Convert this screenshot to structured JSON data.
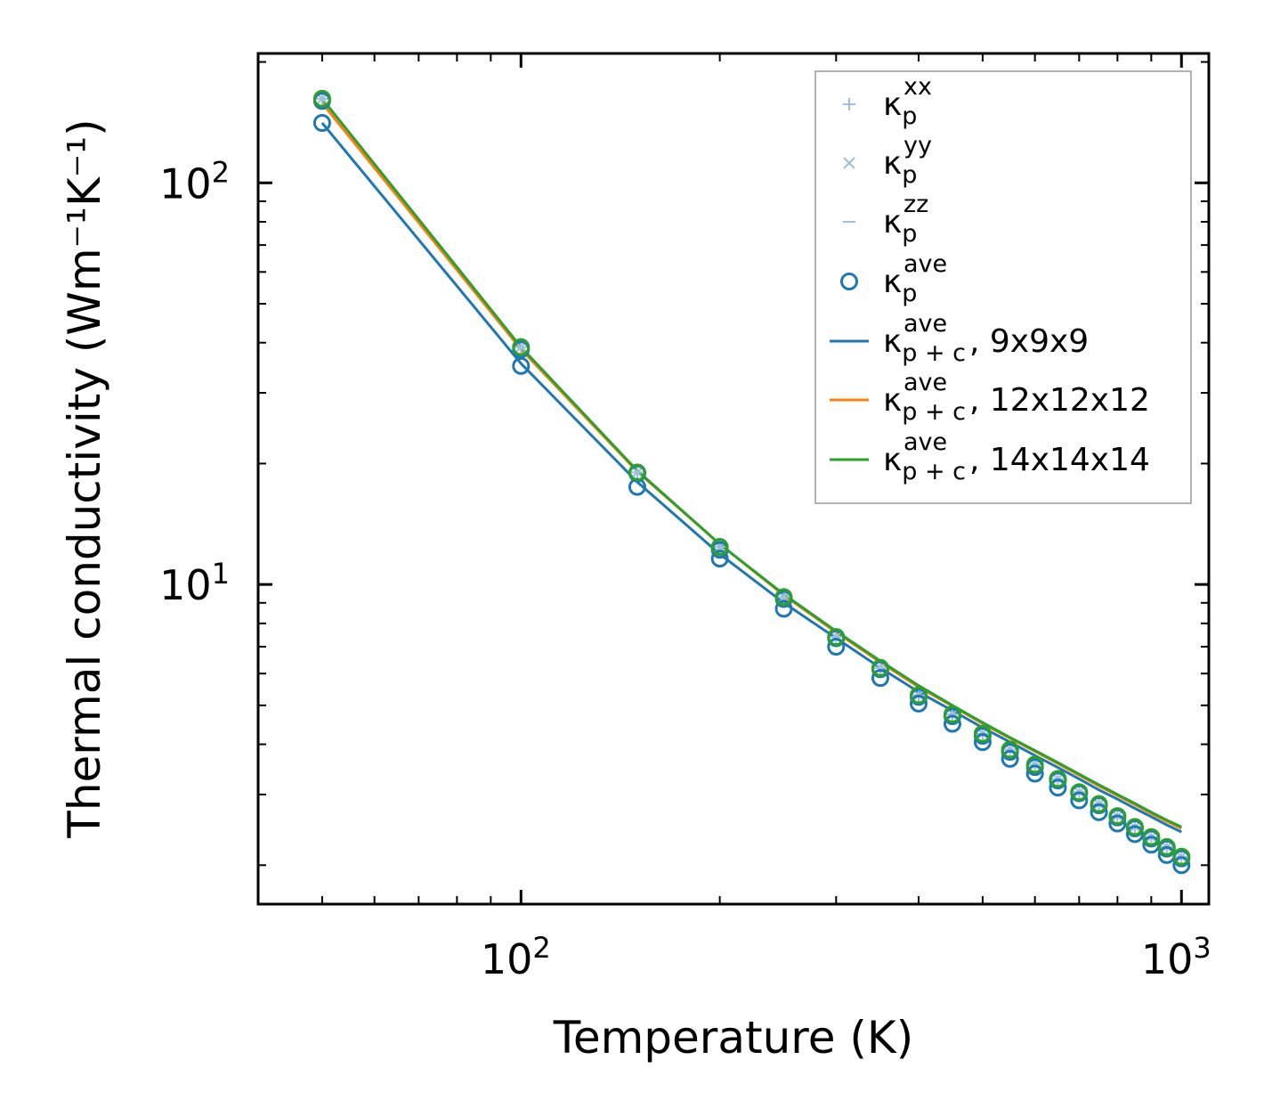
{
  "chart_data": {
    "type": "line",
    "title": "",
    "xlabel": "Temperature (K)",
    "ylabel": "Thermal conductivity (Wm⁻¹K⁻¹)",
    "xscale": "log",
    "yscale": "log",
    "xlim": [
      40,
      1100
    ],
    "ylim": [
      1.6,
      210
    ],
    "x_tick_labels": [
      {
        "value": 100,
        "base": "10",
        "exp": "2"
      },
      {
        "value": 1000,
        "base": "10",
        "exp": "3"
      }
    ],
    "y_tick_labels": [
      {
        "value": 10,
        "base": "10",
        "exp": "1"
      },
      {
        "value": 100,
        "base": "10",
        "exp": "2"
      }
    ],
    "legend_position": "top-right",
    "x": [
      50,
      100,
      150,
      200,
      250,
      300,
      350,
      400,
      450,
      500,
      550,
      600,
      650,
      700,
      750,
      800,
      850,
      900,
      950,
      1000
    ],
    "series": [
      {
        "name": "κ_p^xx",
        "kind": "marker",
        "marker": "plus",
        "color": "#9ebfd9",
        "values": [
          162,
          39.0,
          19.0,
          12.4,
          9.3,
          7.4,
          6.2,
          5.3,
          4.75,
          4.25,
          3.88,
          3.56,
          3.28,
          3.04,
          2.84,
          2.65,
          2.49,
          2.35,
          2.22,
          2.1
        ]
      },
      {
        "name": "κ_p^yy",
        "kind": "marker",
        "marker": "x",
        "color": "#9ebfd9",
        "values": [
          162,
          39.0,
          19.0,
          12.4,
          9.3,
          7.4,
          6.2,
          5.3,
          4.75,
          4.25,
          3.88,
          3.56,
          3.28,
          3.04,
          2.84,
          2.65,
          2.49,
          2.35,
          2.22,
          2.1
        ]
      },
      {
        "name": "κ_p^zz",
        "kind": "marker",
        "marker": "dash",
        "color": "#9ebfd9",
        "values": [
          162,
          39.0,
          19.0,
          12.4,
          9.3,
          7.4,
          6.2,
          5.3,
          4.75,
          4.25,
          3.88,
          3.56,
          3.28,
          3.04,
          2.84,
          2.65,
          2.49,
          2.35,
          2.22,
          2.1
        ]
      },
      {
        "name": "κ_p^ave (9x9x9)",
        "kind": "circle",
        "color": "#1f77b4",
        "in_legend": false,
        "values": [
          141,
          35.0,
          17.5,
          11.6,
          8.7,
          7.0,
          5.85,
          5.05,
          4.5,
          4.05,
          3.68,
          3.38,
          3.12,
          2.9,
          2.71,
          2.54,
          2.39,
          2.25,
          2.12,
          2.0
        ]
      },
      {
        "name": "κ_p^ave",
        "kind": "circle",
        "color": "#1f77b4",
        "in_legend": true,
        "values": [
          160,
          38.5,
          18.9,
          12.2,
          9.2,
          7.35,
          6.15,
          5.25,
          4.7,
          4.2,
          3.83,
          3.51,
          3.25,
          3.02,
          2.82,
          2.63,
          2.47,
          2.33,
          2.2,
          2.08
        ]
      },
      {
        "name": "κ_p^ave (14x14x14)",
        "kind": "circle",
        "color": "#2ca02c",
        "in_legend": false,
        "values": [
          162,
          39.0,
          19.0,
          12.4,
          9.3,
          7.4,
          6.2,
          5.3,
          4.75,
          4.25,
          3.88,
          3.56,
          3.28,
          3.04,
          2.84,
          2.65,
          2.49,
          2.35,
          2.22,
          2.1
        ]
      },
      {
        "name": "κ_p+c^ave, 9x9x9",
        "kind": "line",
        "color": "#1f77b4",
        "values": [
          141,
          35.5,
          18.0,
          11.9,
          9.0,
          7.35,
          6.2,
          5.4,
          4.85,
          4.4,
          4.05,
          3.75,
          3.5,
          3.28,
          3.08,
          2.92,
          2.77,
          2.64,
          2.52,
          2.42
        ]
      },
      {
        "name": "κ_p+c^ave, 12x12x12",
        "kind": "line",
        "color": "#ff7f0e",
        "values": [
          158,
          38.5,
          19.1,
          12.6,
          9.4,
          7.6,
          6.4,
          5.55,
          4.98,
          4.5,
          4.14,
          3.84,
          3.58,
          3.35,
          3.15,
          2.98,
          2.83,
          2.69,
          2.57,
          2.47
        ]
      },
      {
        "name": "κ_p+c^ave, 14x14x14",
        "kind": "line",
        "color": "#2ca02c",
        "values": [
          162,
          39.0,
          19.2,
          12.6,
          9.45,
          7.65,
          6.45,
          5.6,
          5.0,
          4.53,
          4.16,
          3.86,
          3.6,
          3.37,
          3.17,
          3.0,
          2.85,
          2.71,
          2.59,
          2.49
        ]
      }
    ],
    "legend": [
      {
        "sym": "plus",
        "color": "#9ebfd9",
        "sub": "p",
        "sup": "xx",
        "suffix": ""
      },
      {
        "sym": "x",
        "color": "#9ebfd9",
        "sub": "p",
        "sup": "yy",
        "suffix": ""
      },
      {
        "sym": "dash",
        "color": "#9ebfd9",
        "sub": "p",
        "sup": "zz",
        "suffix": ""
      },
      {
        "sym": "circle",
        "color": "#1f77b4",
        "sub": "p",
        "sup": "ave",
        "suffix": ""
      },
      {
        "sym": "line",
        "color": "#1f77b4",
        "sub": "p + c",
        "sup": "ave",
        "suffix": ", 9x9x9"
      },
      {
        "sym": "line",
        "color": "#ff7f0e",
        "sub": "p + c",
        "sup": "ave",
        "suffix": ", 12x12x12"
      },
      {
        "sym": "line",
        "color": "#2ca02c",
        "sub": "p + c",
        "sup": "ave",
        "suffix": ", 14x14x14"
      }
    ]
  }
}
